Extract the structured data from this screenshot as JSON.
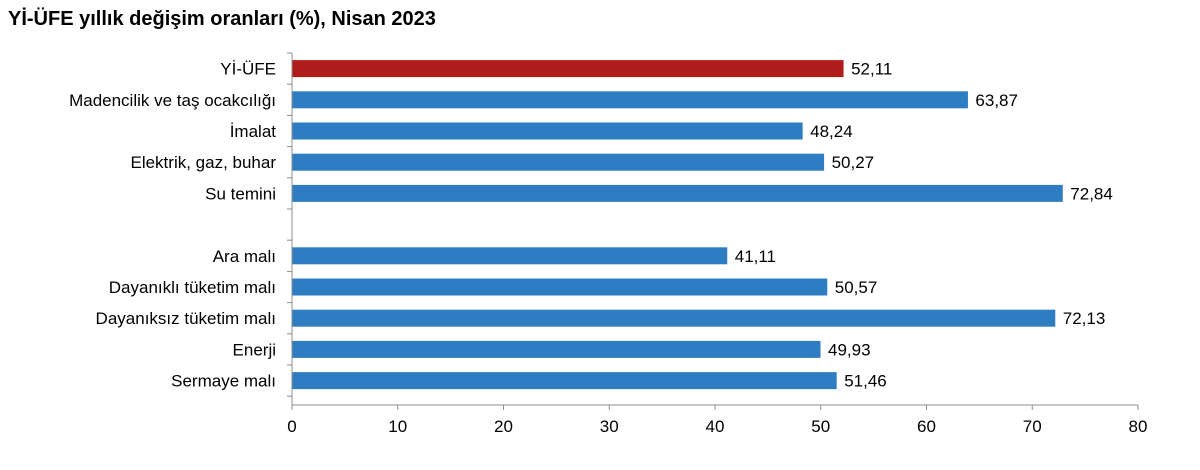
{
  "chart_data": {
    "type": "bar",
    "orientation": "horizontal",
    "title": "Yİ-ÜFE yıllık değişim oranları (%), Nisan 2023",
    "xlabel": "",
    "ylabel": "",
    "xlim": [
      0,
      80
    ],
    "ticks": [
      "0",
      "10",
      "20",
      "30",
      "40",
      "50",
      "60",
      "70",
      "80"
    ],
    "grid": false,
    "legend": "none",
    "groups": [
      [
        {
          "label": "Yİ-ÜFE",
          "value": 52.11,
          "value_label": "52,11",
          "color": "#b01c1c"
        },
        {
          "label": "Madencilik ve taş ocakcılığı",
          "value": 63.87,
          "value_label": "63,87",
          "color": "#2e7dc2"
        },
        {
          "label": "İmalat",
          "value": 48.24,
          "value_label": "48,24",
          "color": "#2e7dc2"
        },
        {
          "label": "Elektrik, gaz, buhar",
          "value": 50.27,
          "value_label": "50,27",
          "color": "#2e7dc2"
        },
        {
          "label": "Su temini",
          "value": 72.84,
          "value_label": "72,84",
          "color": "#2e7dc2"
        }
      ],
      [
        {
          "label": "Ara malı",
          "value": 41.11,
          "value_label": "41,11",
          "color": "#2e7dc2"
        },
        {
          "label": "Dayanıklı tüketim malı",
          "value": 50.57,
          "value_label": "50,57",
          "color": "#2e7dc2"
        },
        {
          "label": "Dayanıksız tüketim malı",
          "value": 72.13,
          "value_label": "72,13",
          "color": "#2e7dc2"
        },
        {
          "label": "Enerji",
          "value": 49.93,
          "value_label": "49,93",
          "color": "#2e7dc2"
        },
        {
          "label": "Sermaye malı",
          "value": 51.46,
          "value_label": "51,46",
          "color": "#2e7dc2"
        }
      ]
    ]
  }
}
